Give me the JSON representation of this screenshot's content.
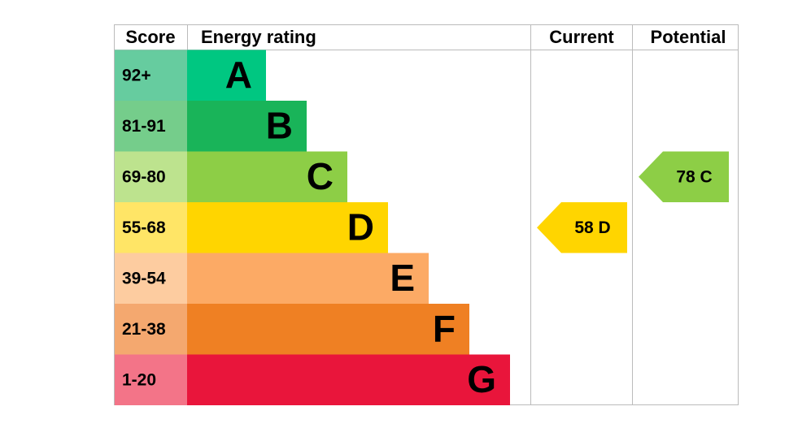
{
  "header": {
    "score": "Score",
    "rating": "Energy rating",
    "current": "Current",
    "potential": "Potential"
  },
  "rows": [
    {
      "score": "92+",
      "letter": "A",
      "color": "#00c781",
      "light": "#66cc9f"
    },
    {
      "score": "81-91",
      "letter": "B",
      "color": "#19b459",
      "light": "#75cd8b"
    },
    {
      "score": "69-80",
      "letter": "C",
      "color": "#8dce46",
      "light": "#bde38e"
    },
    {
      "score": "55-68",
      "letter": "D",
      "color": "#ffd500",
      "light": "#ffe566"
    },
    {
      "score": "39-54",
      "letter": "E",
      "color": "#fcaa65",
      "light": "#fdcca0"
    },
    {
      "score": "21-38",
      "letter": "F",
      "color": "#ef8023",
      "light": "#f4a86f"
    },
    {
      "score": "1-20",
      "letter": "G",
      "color": "#e9153b",
      "light": "#f37488"
    }
  ],
  "current": {
    "value": 58,
    "rating": "D"
  },
  "potential": {
    "value": 78,
    "rating": "C"
  }
}
